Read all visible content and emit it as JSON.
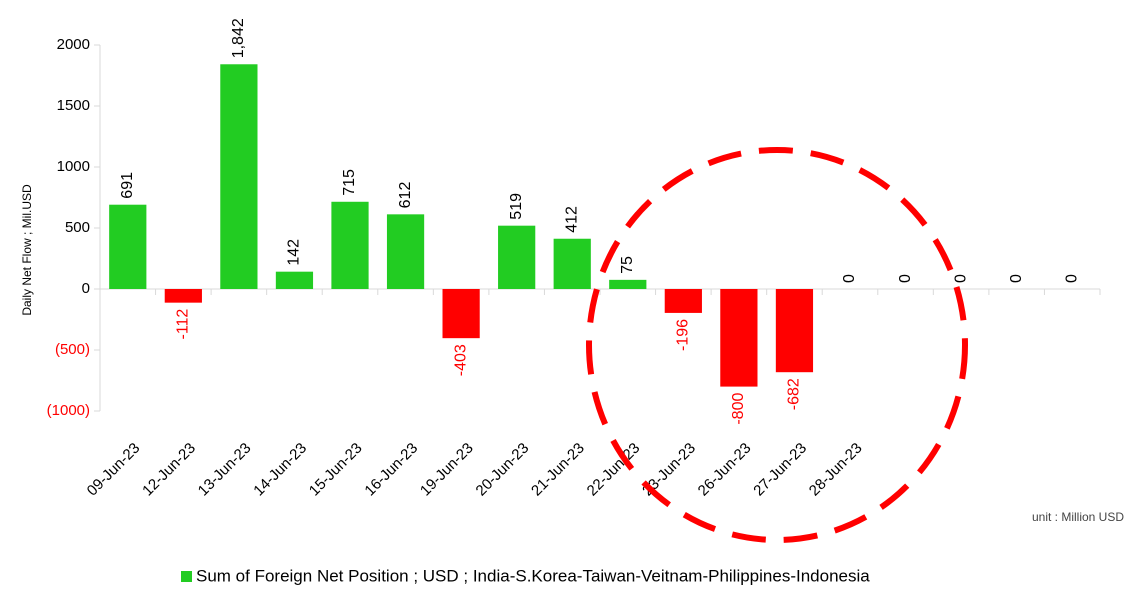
{
  "chart_data": {
    "type": "bar",
    "y_label": "Daily Net Flow ; Mil.USD",
    "note": "unit : Million USD",
    "categories": [
      "09-Jun-23",
      "12-Jun-23",
      "13-Jun-23",
      "14-Jun-23",
      "15-Jun-23",
      "16-Jun-23",
      "19-Jun-23",
      "20-Jun-23",
      "21-Jun-23",
      "22-Jun-23",
      "23-Jun-23",
      "26-Jun-23",
      "27-Jun-23",
      "28-Jun-23",
      null,
      null,
      null,
      null
    ],
    "series": [
      {
        "name": "Sum of Foreign Net Position ; USD ; India-S.Korea-Taiwan-Veitnam-Philippines-Indonesia",
        "color": "#22cc22",
        "negative_color": "#ff0000",
        "values": [
          691,
          -112,
          1842,
          142,
          715,
          612,
          -403,
          519,
          412,
          75,
          -196,
          -800,
          -682,
          0,
          0,
          0,
          0,
          0
        ],
        "value_labels": [
          "691",
          "-112",
          "1,842",
          "142",
          "715",
          "612",
          "-403",
          "519",
          "412",
          "75",
          "-196",
          "-800",
          "-682",
          "0",
          "0",
          "0",
          "0",
          "0"
        ]
      }
    ],
    "ylim": [
      -1000,
      2000
    ],
    "yticks": [
      2000,
      1500,
      1000,
      500,
      0,
      {
        "value": -500,
        "label": "(500)"
      },
      {
        "value": -1000,
        "label": "(1000)"
      }
    ],
    "grid": false
  }
}
